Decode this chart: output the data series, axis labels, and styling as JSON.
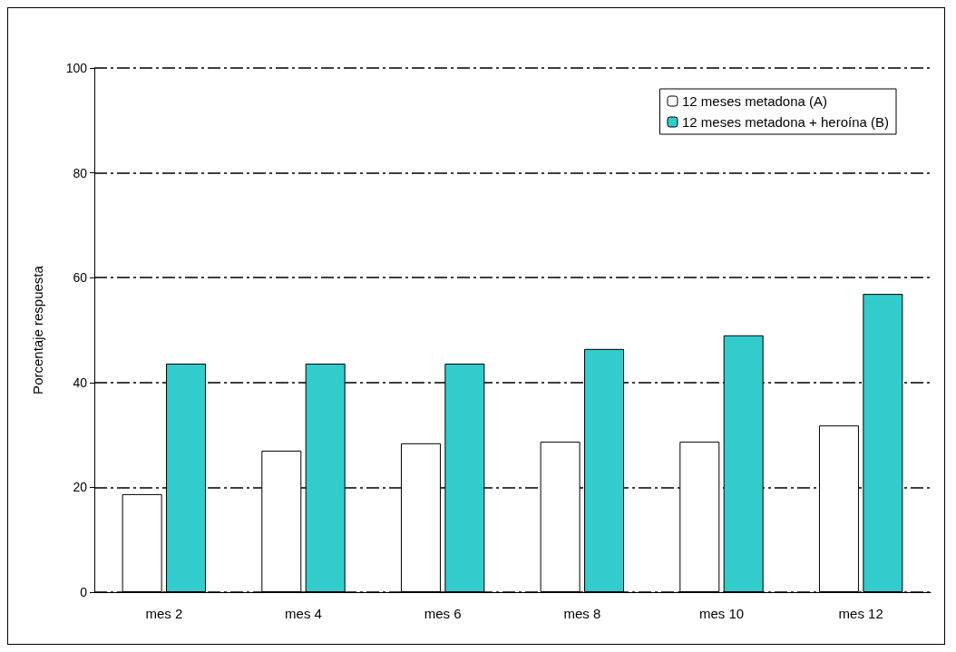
{
  "chart_data": {
    "type": "bar",
    "ylabel": "Porcentaje respuesta",
    "categories": [
      "mes 2",
      "mes 4",
      "mes 6",
      "mes 8",
      "mes 10",
      "mes 12"
    ],
    "series": [
      {
        "name": "12 meses metadona (A)",
        "color": "#ffffff",
        "values": [
          18.7,
          27,
          28.4,
          28.7,
          28.7,
          31.8
        ]
      },
      {
        "name": "12 meses metadona + heroína (B)",
        "color": "#33cccc",
        "values": [
          43.6,
          43.6,
          43.6,
          46.4,
          49,
          56.9
        ]
      }
    ],
    "ylim": [
      0,
      100
    ],
    "yticks": [
      0,
      20,
      40,
      60,
      80,
      100
    ],
    "grid": "y",
    "legend": "top right"
  }
}
